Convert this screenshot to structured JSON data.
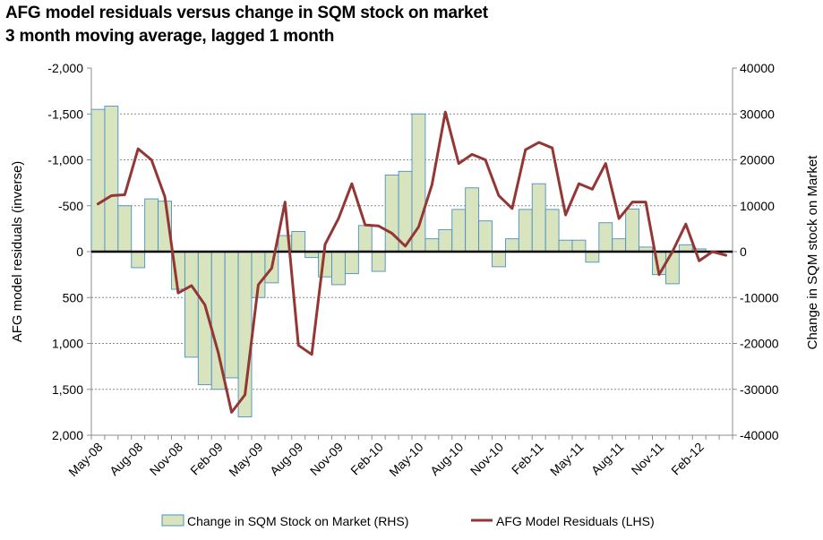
{
  "chart_data": {
    "type": "bar+line",
    "title": "AFG model residuals versus change in SQM stock on market",
    "subtitle": "3 month moving average, lagged 1 month",
    "y_left_label": "AFG model residuals (inverse)",
    "y_right_label": "Change in SQM stock on Market",
    "y_left_ticks": [
      "-2,000",
      "-1,500",
      "-1,000",
      "-500",
      "0",
      "500",
      "1,000",
      "1,500",
      "2,000"
    ],
    "y_right_ticks": [
      "40000",
      "30000",
      "20000",
      "10000",
      "0",
      "-10000",
      "-20000",
      "-30000",
      "-40000"
    ],
    "y_left_range": [
      2000,
      -2000
    ],
    "y_right_range": [
      -40000,
      40000
    ],
    "x_tick_labels": [
      "May-08",
      "Aug-08",
      "Nov-08",
      "Feb-09",
      "May-09",
      "Aug-09",
      "Nov-09",
      "Feb-10",
      "May-10",
      "Aug-10",
      "Nov-10",
      "Feb-11",
      "May-11",
      "Aug-11",
      "Nov-11",
      "Feb-12"
    ],
    "months": [
      "May-08",
      "Jun-08",
      "Jul-08",
      "Aug-08",
      "Sep-08",
      "Oct-08",
      "Nov-08",
      "Dec-08",
      "Jan-09",
      "Feb-09",
      "Mar-09",
      "Apr-09",
      "May-09",
      "Jun-09",
      "Jul-09",
      "Aug-09",
      "Sep-09",
      "Oct-09",
      "Nov-09",
      "Dec-09",
      "Jan-10",
      "Feb-10",
      "Mar-10",
      "Apr-10",
      "May-10",
      "Jun-10",
      "Jul-10",
      "Aug-10",
      "Sep-10",
      "Oct-10",
      "Nov-10",
      "Dec-10",
      "Jan-11",
      "Feb-11",
      "Mar-11",
      "Apr-11",
      "May-11",
      "Jun-11",
      "Jul-11",
      "Aug-11",
      "Sep-11",
      "Oct-11",
      "Nov-11",
      "Dec-11",
      "Jan-12",
      "Feb-12",
      "Mar-12",
      "Apr-12"
    ],
    "series": [
      {
        "name": "Change in SQM Stock on Market (RHS)",
        "kind": "bar",
        "axis": "right",
        "color": "#d7e4bd",
        "edge_color": "#4a90c4",
        "values": [
          31000,
          31700,
          10000,
          -3500,
          11500,
          11000,
          -8200,
          -23000,
          -29000,
          -30000,
          -27500,
          -36000,
          -10000,
          -6800,
          3500,
          4400,
          -1300,
          -5500,
          -7200,
          -4800,
          5700,
          -4300,
          16700,
          17500,
          30000,
          2800,
          4800,
          9200,
          13900,
          6700,
          -3300,
          2800,
          9200,
          14800,
          9200,
          2500,
          2500,
          -2300,
          6300,
          2800,
          9300,
          1000,
          -5000,
          -7000,
          1500,
          600,
          0,
          0
        ]
      },
      {
        "name": "AFG Model Residuals (LHS)",
        "kind": "line",
        "axis": "left",
        "color": "#943634",
        "values": [
          -520,
          -610,
          -620,
          -1120,
          -1000,
          -600,
          450,
          370,
          580,
          1100,
          1750,
          1560,
          360,
          180,
          -540,
          1020,
          1120,
          -80,
          -360,
          -740,
          -290,
          -280,
          -200,
          -60,
          -270,
          -730,
          -1520,
          -960,
          -1060,
          -1000,
          -610,
          -470,
          -1110,
          -1190,
          -1130,
          -400,
          -740,
          -680,
          -960,
          -360,
          -540,
          -540,
          250,
          0,
          -300,
          100,
          0,
          40
        ]
      }
    ],
    "legend": {
      "position": "bottom",
      "bar_label": "Change in SQM Stock on Market (RHS)",
      "line_label": "AFG Model Residuals (LHS)"
    },
    "grid": true
  },
  "colors": {
    "bar_fill": "#d7e4bd",
    "bar_edge": "#4a90c4",
    "line": "#943634",
    "grid": "#8c8c8c",
    "axis": "#8c8c8c",
    "zero_line": "#000000"
  }
}
